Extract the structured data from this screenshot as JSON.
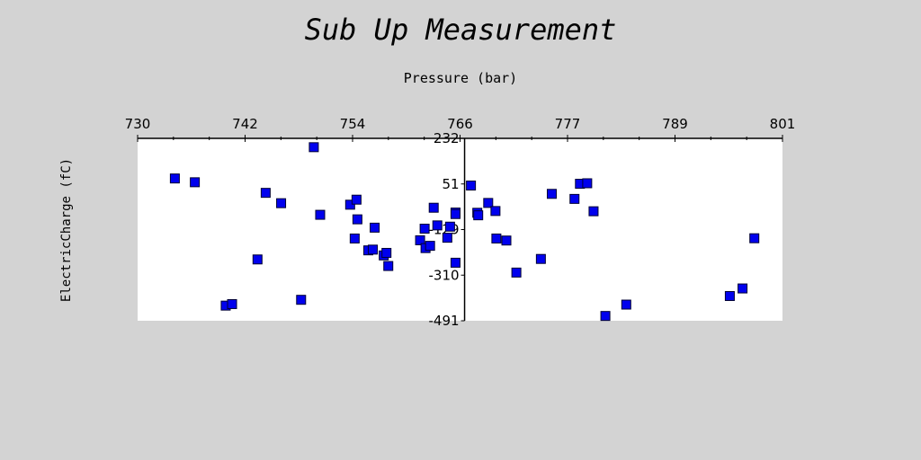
{
  "chart_data": {
    "type": "scatter",
    "title": "Sub Up Measurement",
    "xlabel": "Pressure (bar)",
    "ylabel": "ElectricCharge (fC)",
    "xlim": [
      730,
      801
    ],
    "ylim": [
      -491,
      232
    ],
    "x_ticks": [
      "730",
      "742",
      "754",
      "766",
      "777",
      "789",
      "801"
    ],
    "y_ticks": [
      "232",
      "51",
      "-129",
      "-310",
      "-491"
    ],
    "x_axis_position": "top",
    "y_axis_crosses_at_x": 766,
    "grid": false,
    "legend": "none",
    "marker": "square",
    "marker_color": "#0000ee",
    "plot_background": "#ffffff",
    "page_background": "#d3d3d3",
    "series": [
      {
        "points": [
          [
            734.1,
            73
          ],
          [
            736.3,
            58
          ],
          [
            739.7,
            -431
          ],
          [
            740.4,
            -425
          ],
          [
            743.2,
            -248
          ],
          [
            744.1,
            16
          ],
          [
            745.8,
            -25
          ],
          [
            748.0,
            -408
          ],
          [
            749.4,
            197
          ],
          [
            750.1,
            -71
          ],
          [
            753.4,
            -31
          ],
          [
            753.9,
            -165
          ],
          [
            754.1,
            -11
          ],
          [
            754.2,
            -89
          ],
          [
            755.4,
            -212
          ],
          [
            755.9,
            -209
          ],
          [
            756.1,
            -122
          ],
          [
            757.1,
            -232
          ],
          [
            757.4,
            -222
          ],
          [
            757.6,
            -274
          ],
          [
            761.1,
            -172
          ],
          [
            761.6,
            -126
          ],
          [
            761.7,
            -203
          ],
          [
            762.2,
            -194
          ],
          [
            762.6,
            -43
          ],
          [
            763.0,
            -113
          ],
          [
            764.1,
            -162
          ],
          [
            764.4,
            -118
          ],
          [
            765.0,
            -62
          ],
          [
            765.0,
            -68
          ],
          [
            765.0,
            -261
          ],
          [
            766.7,
            45
          ],
          [
            767.4,
            -63
          ],
          [
            767.5,
            -73
          ],
          [
            768.6,
            -24
          ],
          [
            769.4,
            -56
          ],
          [
            769.5,
            -165
          ],
          [
            770.6,
            -173
          ],
          [
            771.7,
            -300
          ],
          [
            774.4,
            -246
          ],
          [
            775.6,
            12
          ],
          [
            778.1,
            -8
          ],
          [
            778.7,
            52
          ],
          [
            779.5,
            54
          ],
          [
            780.2,
            -57
          ],
          [
            781.5,
            -472
          ],
          [
            783.8,
            -427
          ],
          [
            795.2,
            -393
          ],
          [
            796.6,
            -363
          ],
          [
            797.9,
            -164
          ]
        ]
      }
    ]
  }
}
